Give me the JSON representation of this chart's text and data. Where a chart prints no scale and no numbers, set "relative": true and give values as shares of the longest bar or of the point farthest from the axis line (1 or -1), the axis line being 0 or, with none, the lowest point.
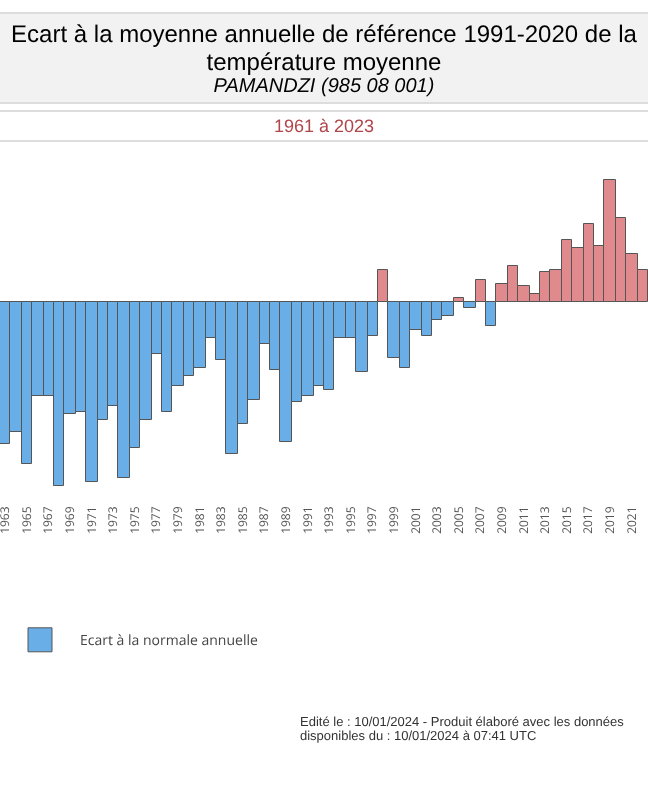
{
  "chart_data": {
    "type": "bar",
    "relative": true,
    "title": "Ecart à la moyenne annuelle de référence 1991-2020 de la température moyenne",
    "subtitle": "PAMANDZI (985 08 001)",
    "annotations": [
      "1961 à 2023",
      "Edité le : 10/01/2024 - Produit élaboré avec les données disponibles du : 10/01/2024 à 07:41 UTC"
    ],
    "categories": [
      "1963",
      null,
      "1965",
      null,
      "1967",
      null,
      "1969",
      null,
      "1971",
      null,
      "1973",
      null,
      "1975",
      null,
      "1977",
      null,
      "1979",
      null,
      "1981",
      null,
      "1983",
      null,
      "1985",
      null,
      "1987",
      null,
      "1989",
      null,
      "1991",
      null,
      "1993",
      null,
      "1995",
      null,
      "1997",
      null,
      "1999",
      null,
      "2001",
      null,
      "2003",
      null,
      "2005",
      null,
      "2007",
      null,
      "2009",
      null,
      "2011",
      null,
      "2013",
      null,
      "2015",
      null,
      "2017",
      null,
      "2019",
      null,
      "2021",
      null
    ],
    "series": [
      {
        "name": "Ecart à la normale annuelle",
        "values": [
          -0.77,
          -0.71,
          -0.89,
          -0.51,
          -0.51,
          -1,
          -0.61,
          -0.6,
          -0.98,
          -0.64,
          -0.57,
          -0.96,
          -0.8,
          -0.64,
          -0.28,
          -0.6,
          -0.46,
          -0.4,
          -0.36,
          -0.19,
          -0.31,
          -0.83,
          -0.67,
          -0.53,
          -0.23,
          -0.37,
          -0.76,
          -0.54,
          -0.51,
          -0.46,
          -0.48,
          -0.19,
          -0.19,
          -0.38,
          -0.18,
          0.18,
          -0.3,
          -0.36,
          -0.15,
          -0.18,
          -0.09,
          -0.07,
          0.03,
          -0.03,
          0.13,
          -0.13,
          0.1,
          0.2,
          0.09,
          0.05,
          0.17,
          0.18,
          0.34,
          0.3,
          0.43,
          0.31,
          0.68,
          0.47,
          0.27,
          0.18
        ],
        "colors": [
          "#6aaee8",
          "#6aaee8",
          "#6aaee8",
          "#6aaee8",
          "#6aaee8",
          "#6aaee8",
          "#6aaee8",
          "#6aaee8",
          "#6aaee8",
          "#6aaee8",
          "#6aaee8",
          "#6aaee8",
          "#6aaee8",
          "#6aaee8",
          "#6aaee8",
          "#6aaee8",
          "#6aaee8",
          "#6aaee8",
          "#6aaee8",
          "#6aaee8",
          "#6aaee8",
          "#6aaee8",
          "#6aaee8",
          "#6aaee8",
          "#6aaee8",
          "#6aaee8",
          "#6aaee8",
          "#6aaee8",
          "#6aaee8",
          "#6aaee8",
          "#6aaee8",
          "#6aaee8",
          "#6aaee8",
          "#6aaee8",
          "#6aaee8",
          "#e08a8e",
          "#6aaee8",
          "#6aaee8",
          "#6aaee8",
          "#6aaee8",
          "#6aaee8",
          "#6aaee8",
          "#e08a8e",
          "#6aaee8",
          "#e08a8e",
          "#6aaee8",
          "#e08a8e",
          "#e08a8e",
          "#e08a8e",
          "#e08a8e",
          "#e08a8e",
          "#e08a8e",
          "#e08a8e",
          "#e08a8e",
          "#e08a8e",
          "#e08a8e",
          "#e08a8e",
          "#e08a8e",
          "#e08a8e",
          "#e08a8e"
        ]
      }
    ],
    "legend": "bottom left"
  }
}
